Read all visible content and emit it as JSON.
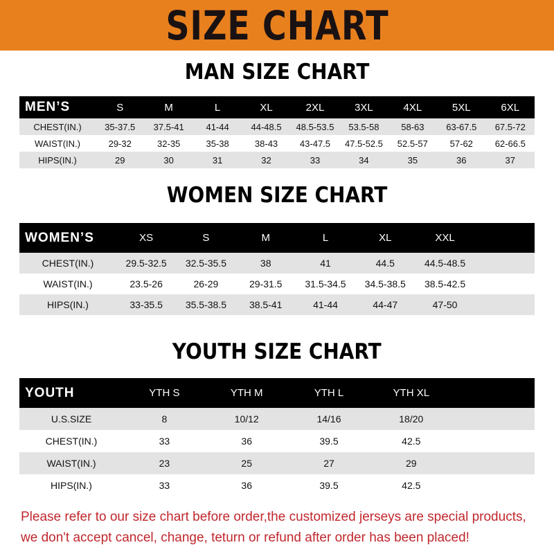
{
  "header": {
    "title": "SIZE CHART",
    "color": "#e8801e"
  },
  "men": {
    "title": "MAN SIZE CHART",
    "head": "MEN’S",
    "sizes": [
      "S",
      "M",
      "L",
      "XL",
      "2XL",
      "3XL",
      "4XL",
      "5XL",
      "6XL"
    ],
    "rows": [
      {
        "label": "CHEST(IN.)",
        "values": [
          "35-37.5",
          "37.5-41",
          "41-44",
          "44-48.5",
          "48.5-53.5",
          "53.5-58",
          "58-63",
          "63-67.5",
          "67.5-72"
        ]
      },
      {
        "label": "WAIST(IN.)",
        "values": [
          "29-32",
          "32-35",
          "35-38",
          "38-43",
          "43-47.5",
          "47.5-52.5",
          "52.5-57",
          "57-62",
          "62-66.5"
        ]
      },
      {
        "label": "HIPS(IN.)",
        "values": [
          "29",
          "30",
          "31",
          "32",
          "33",
          "34",
          "35",
          "36",
          "37"
        ]
      }
    ]
  },
  "women": {
    "title": "WOMEN SIZE CHART",
    "head": "WOMEN’S",
    "sizes": [
      "XS",
      "S",
      "M",
      "L",
      "XL",
      "XXL"
    ],
    "rows": [
      {
        "label": "CHEST(IN.)",
        "values": [
          "29.5-32.5",
          "32.5-35.5",
          "38",
          "41",
          "44.5",
          "44.5-48.5"
        ]
      },
      {
        "label": "WAIST(IN.)",
        "values": [
          "23.5-26",
          "26-29",
          "29-31.5",
          "31.5-34.5",
          "34.5-38.5",
          "38.5-42.5"
        ]
      },
      {
        "label": "HIPS(IN.)",
        "values": [
          "33-35.5",
          "35.5-38.5",
          "38.5-41",
          "41-44",
          "44-47",
          "47-50"
        ]
      }
    ]
  },
  "youth": {
    "title": "YOUTH SIZE CHART",
    "head": "YOUTH",
    "sizes": [
      "YTH S",
      "YTH M",
      "YTH L",
      "YTH XL"
    ],
    "rows": [
      {
        "label": "U.S.SIZE",
        "values": [
          "8",
          "10/12",
          "14/16",
          "18/20"
        ]
      },
      {
        "label": "CHEST(IN.)",
        "values": [
          "33",
          "36",
          "39.5",
          "42.5"
        ]
      },
      {
        "label": "WAIST(IN.)",
        "values": [
          "23",
          "25",
          "27",
          "29"
        ]
      },
      {
        "label": "HIPS(IN.)",
        "values": [
          "33",
          "36",
          "39.5",
          "42.5"
        ]
      }
    ]
  },
  "note": {
    "line1": "Please refer to our size chart before order,the customized jerseys are special products,",
    "line2": "we don't accept cancel, change, teturn or refund after order has been placed!"
  }
}
